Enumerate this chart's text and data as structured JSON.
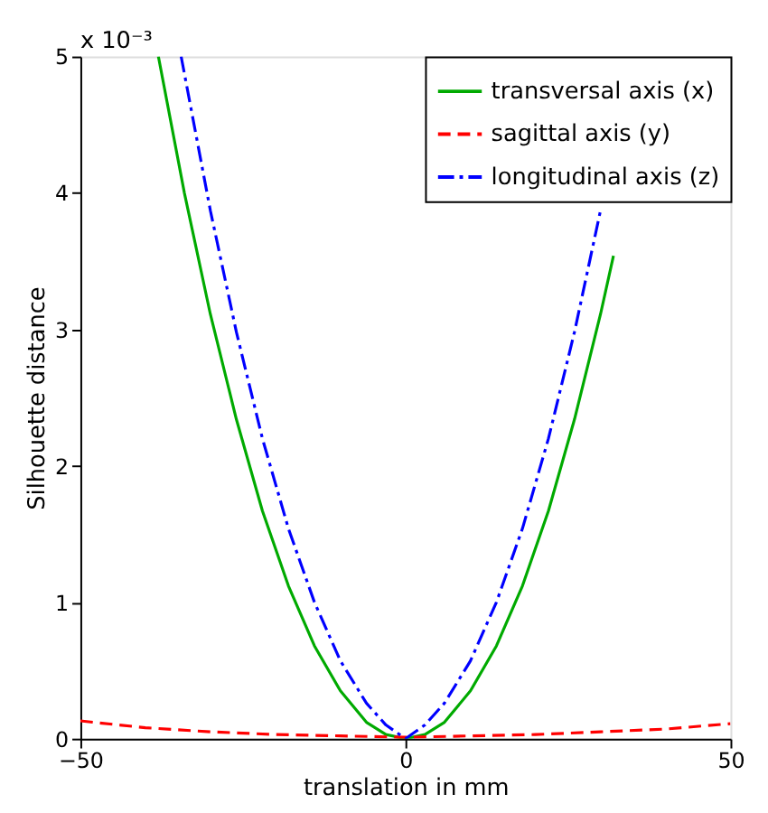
{
  "chart_data": {
    "type": "line",
    "xlabel": "translation in mm",
    "ylabel": "Silhouette distance",
    "annotations": [
      "x 10⁻³"
    ],
    "xlim": [
      -50,
      50
    ],
    "xticks": [
      {
        "value": -50,
        "label": "−50"
      },
      0,
      50
    ],
    "ylim": [
      0,
      5
    ],
    "yticks": [
      0,
      1,
      2,
      3,
      4,
      5
    ],
    "grid": false,
    "legend": "top right",
    "marker": "none",
    "series": [
      {
        "name": "transversal axis (x)",
        "color": "#00aa00",
        "line_style": "solid",
        "x": [
          -38,
          -34,
          -30,
          -26,
          -22,
          -18,
          -14,
          -10,
          -6,
          -3,
          0,
          3,
          6,
          10,
          14,
          18,
          22,
          26,
          30,
          32
        ],
        "values": [
          5.0,
          4.0,
          3.11,
          2.34,
          1.67,
          1.12,
          0.68,
          0.35,
          0.12,
          0.03,
          0,
          0.03,
          0.12,
          0.35,
          0.68,
          1.12,
          1.67,
          2.34,
          3.11,
          3.54
        ]
      },
      {
        "name": "sagittal axis (y)",
        "color": "#ff0000",
        "line_style": "dashed",
        "x": [
          -50,
          -40,
          -30,
          -20,
          -10,
          0,
          10,
          20,
          30,
          40,
          50
        ],
        "values": [
          0.13,
          0.08,
          0.05,
          0.03,
          0.02,
          0.01,
          0.02,
          0.03,
          0.05,
          0.07,
          0.11
        ]
      },
      {
        "name": "longitudinal axis (z)",
        "color": "#0000ff",
        "line_style": "dashdot",
        "x": [
          -34.5,
          -30,
          -26,
          -22,
          -18,
          -14,
          -10,
          -6,
          -3,
          0,
          3,
          6,
          10,
          14,
          18,
          22,
          26,
          30
        ],
        "values": [
          5.0,
          3.87,
          2.98,
          2.2,
          1.54,
          1.0,
          0.57,
          0.26,
          0.1,
          0,
          0.1,
          0.26,
          0.57,
          1.0,
          1.54,
          2.2,
          2.98,
          3.87
        ]
      }
    ]
  }
}
